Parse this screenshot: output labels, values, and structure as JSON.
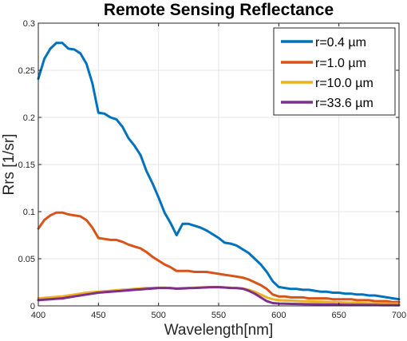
{
  "chart_data": {
    "type": "line",
    "title": "Remote Sensing Reflectance",
    "xlabel": "Wavelength[nm]",
    "ylabel": "Rrs [1/sr]",
    "xlim": [
      400,
      700
    ],
    "ylim": [
      0,
      0.3
    ],
    "grid": true,
    "legend_position": "top-right",
    "x_ticks": [
      "400",
      "450",
      "500",
      "550",
      "600",
      "650",
      "700"
    ],
    "y_ticks": [
      "0",
      "0.05",
      "0.1",
      "0.15",
      "0.2",
      "0.25",
      "0.3"
    ],
    "x": [
      400,
      405,
      410,
      415,
      420,
      425,
      430,
      435,
      440,
      445,
      450,
      455,
      460,
      465,
      470,
      475,
      480,
      485,
      490,
      495,
      500,
      505,
      510,
      515,
      520,
      525,
      530,
      535,
      540,
      545,
      550,
      555,
      560,
      565,
      570,
      575,
      580,
      585,
      590,
      595,
      600,
      605,
      610,
      615,
      620,
      625,
      630,
      635,
      640,
      645,
      650,
      655,
      660,
      665,
      670,
      675,
      680,
      685,
      690,
      695,
      700
    ],
    "series": [
      {
        "name": "r=0.4 µm",
        "color": "#0072BD",
        "values": [
          0.241,
          0.262,
          0.273,
          0.279,
          0.279,
          0.273,
          0.272,
          0.268,
          0.257,
          0.236,
          0.205,
          0.204,
          0.2,
          0.198,
          0.19,
          0.178,
          0.17,
          0.16,
          0.143,
          0.13,
          0.115,
          0.099,
          0.088,
          0.075,
          0.087,
          0.087,
          0.085,
          0.083,
          0.08,
          0.076,
          0.072,
          0.067,
          0.066,
          0.064,
          0.06,
          0.056,
          0.05,
          0.044,
          0.036,
          0.026,
          0.02,
          0.019,
          0.018,
          0.018,
          0.017,
          0.017,
          0.016,
          0.015,
          0.015,
          0.014,
          0.014,
          0.013,
          0.013,
          0.012,
          0.012,
          0.011,
          0.011,
          0.01,
          0.009,
          0.008,
          0.007
        ]
      },
      {
        "name": "r=1.0 µm",
        "color": "#D95319",
        "values": [
          0.082,
          0.091,
          0.096,
          0.099,
          0.099,
          0.097,
          0.096,
          0.095,
          0.091,
          0.083,
          0.072,
          0.071,
          0.07,
          0.07,
          0.068,
          0.065,
          0.063,
          0.061,
          0.057,
          0.052,
          0.048,
          0.044,
          0.041,
          0.037,
          0.037,
          0.037,
          0.036,
          0.036,
          0.036,
          0.035,
          0.034,
          0.033,
          0.032,
          0.031,
          0.03,
          0.028,
          0.025,
          0.022,
          0.018,
          0.012,
          0.01,
          0.01,
          0.009,
          0.009,
          0.009,
          0.008,
          0.008,
          0.008,
          0.008,
          0.007,
          0.007,
          0.007,
          0.007,
          0.006,
          0.006,
          0.006,
          0.005,
          0.005,
          0.005,
          0.004,
          0.004
        ]
      },
      {
        "name": "r=10.0 µm",
        "color": "#EDB120",
        "values": [
          0.008,
          0.0085,
          0.009,
          0.0095,
          0.01,
          0.011,
          0.012,
          0.013,
          0.014,
          0.0145,
          0.015,
          0.0155,
          0.016,
          0.0165,
          0.017,
          0.0175,
          0.018,
          0.0185,
          0.019,
          0.019,
          0.0192,
          0.0192,
          0.019,
          0.0185,
          0.0188,
          0.019,
          0.0193,
          0.0195,
          0.0198,
          0.02,
          0.02,
          0.0195,
          0.0192,
          0.019,
          0.0185,
          0.017,
          0.015,
          0.012,
          0.009,
          0.007,
          0.006,
          0.0058,
          0.0055,
          0.0053,
          0.005,
          0.0048,
          0.0046,
          0.0044,
          0.0042,
          0.004,
          0.0038,
          0.0036,
          0.0034,
          0.0032,
          0.003,
          0.0028,
          0.0027,
          0.0026,
          0.0025,
          0.0024,
          0.0023
        ]
      },
      {
        "name": "r=33.6 µm",
        "color": "#7E2F8E",
        "values": [
          0.006,
          0.0065,
          0.007,
          0.0075,
          0.008,
          0.009,
          0.01,
          0.011,
          0.012,
          0.013,
          0.014,
          0.0145,
          0.015,
          0.0155,
          0.016,
          0.0165,
          0.017,
          0.0175,
          0.018,
          0.0185,
          0.019,
          0.019,
          0.0188,
          0.0182,
          0.0185,
          0.0188,
          0.019,
          0.0193,
          0.0196,
          0.0198,
          0.0198,
          0.0195,
          0.019,
          0.0188,
          0.0182,
          0.016,
          0.013,
          0.009,
          0.005,
          0.003,
          0.0025,
          0.0023,
          0.0021,
          0.002,
          0.0019,
          0.0018,
          0.0017,
          0.0016,
          0.0015,
          0.0014,
          0.0013,
          0.0012,
          0.0011,
          0.001,
          0.001,
          0.0009,
          0.0009,
          0.0008,
          0.0008,
          0.0008,
          0.0007
        ]
      }
    ]
  }
}
